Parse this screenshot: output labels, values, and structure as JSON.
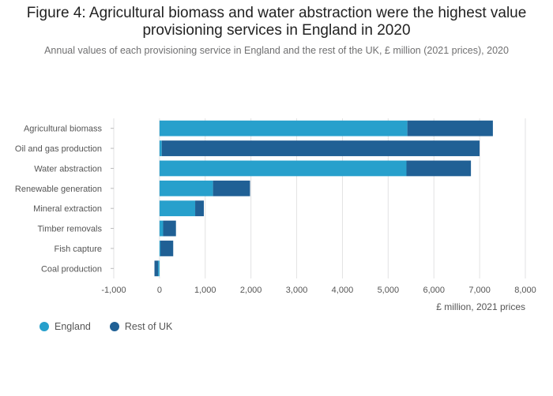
{
  "title": "Figure 4: Agricultural biomass and water abstraction were the highest value provisioning services in England in 2020",
  "subtitle": "Annual values of each provisioning service in England and the rest of the UK, £ million (2021 prices), 2020",
  "colors": {
    "england": "#27a0cc",
    "rest_of_uk": "#206095",
    "grid": "#e2e2e3",
    "axis_text": "#555555"
  },
  "chart_data": {
    "type": "bar",
    "orientation": "horizontal",
    "stacked": true,
    "categories": [
      "Agricultural biomass",
      "Oil and gas production",
      "Water abstraction",
      "Renewable generation",
      "Mineral extraction",
      "Timber removals",
      "Fish capture",
      "Coal production"
    ],
    "series": [
      {
        "name": "England",
        "values": [
          5420,
          50,
          5400,
          1170,
          780,
          80,
          20,
          -30
        ]
      },
      {
        "name": "Rest of UK",
        "values": [
          1870,
          6950,
          1410,
          810,
          190,
          280,
          280,
          -80
        ]
      }
    ],
    "xlabel": "£ million, 2021 prices",
    "ylabel": "",
    "xlim": [
      -1000,
      8000
    ],
    "ticks": [
      -1000,
      0,
      1000,
      2000,
      3000,
      4000,
      5000,
      6000,
      7000,
      8000
    ],
    "tick_labels": [
      "-1,000",
      "0",
      "1,000",
      "2,000",
      "3,000",
      "4,000",
      "5,000",
      "6,000",
      "7,000",
      "8,000"
    ],
    "legend": {
      "position": "bottom-left",
      "entries": [
        "England",
        "Rest of UK"
      ]
    },
    "grid": true
  }
}
